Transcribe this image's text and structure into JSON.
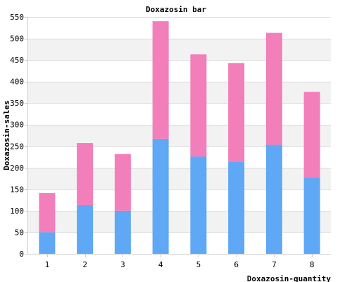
{
  "chart_data": {
    "type": "bar",
    "stacked": true,
    "title": "Doxazosin bar",
    "xlabel": "Doxazosin-quantity",
    "ylabel": "Doxazosin-sales",
    "categories": [
      "1",
      "2",
      "3",
      "4",
      "5",
      "6",
      "7",
      "8"
    ],
    "ylim": [
      0,
      550
    ],
    "yticks": [
      0,
      50,
      100,
      150,
      200,
      250,
      300,
      350,
      400,
      450,
      500,
      550
    ],
    "grid": true,
    "series": [
      {
        "values": [
          50,
          113,
          100,
          267,
          226,
          214,
          253,
          178
        ],
        "color": "#5fa8f5"
      },
      {
        "values": [
          91,
          144,
          132,
          273,
          237,
          229,
          260,
          198
        ],
        "color": "#f27fba"
      }
    ],
    "colors": {
      "band_shaded": "#f2f2f2",
      "band_plain": "#ffffff",
      "gridline": "#dddddd",
      "axis": "#cccccc",
      "text": "#000000"
    }
  }
}
